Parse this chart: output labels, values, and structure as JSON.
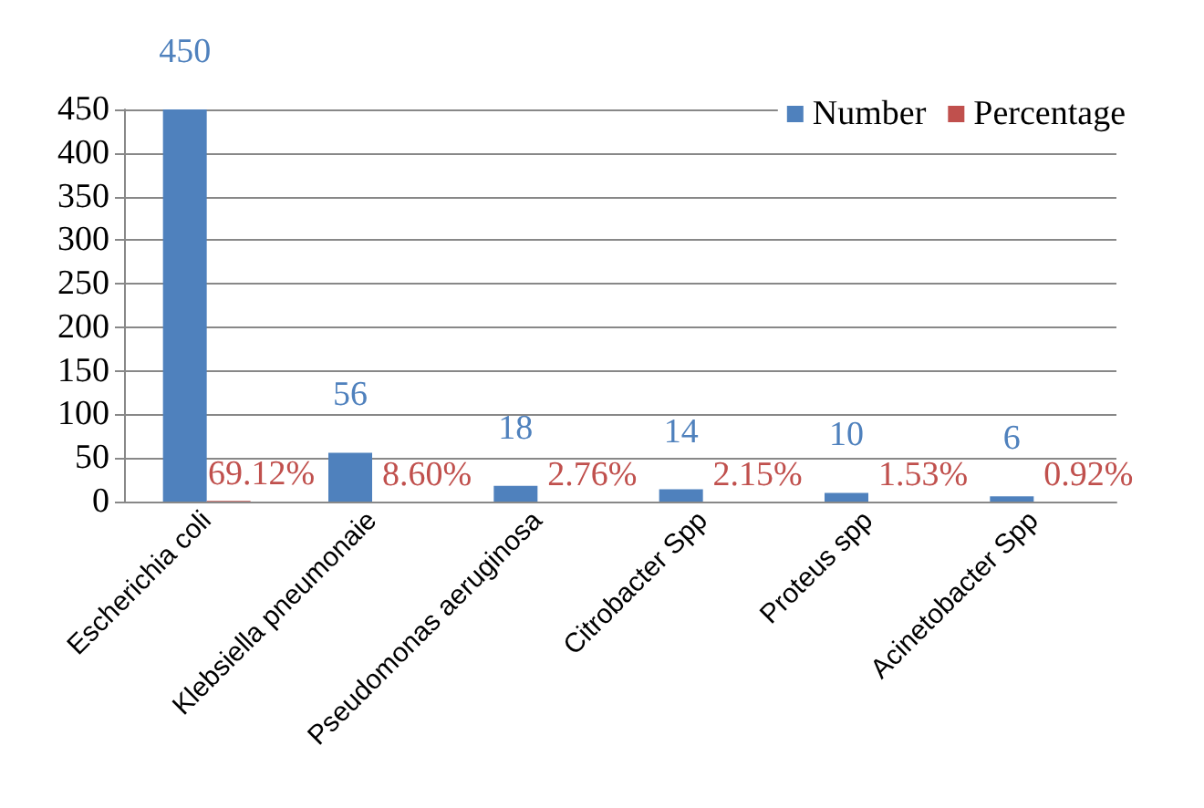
{
  "chart_data": {
    "type": "bar",
    "categories": [
      "Escherichia coli",
      "Klebsiella pneumonaie",
      "Pseudomonas aeruginosa",
      "Citrobacter Spp",
      "Proteus spp",
      "Acinetobacter Spp"
    ],
    "series": [
      {
        "name": "Number",
        "color": "#4f81bd",
        "values": [
          450,
          56,
          18,
          14,
          10,
          6
        ],
        "value_labels": [
          "450",
          "56",
          "18",
          "14",
          "10",
          "6"
        ]
      },
      {
        "name": "Percentage",
        "color": "#c0504d",
        "values": [
          0.6912,
          0.086,
          0.0276,
          0.0215,
          0.0153,
          0.0092
        ],
        "value_labels": [
          "69.12%",
          "8.60%",
          "2.76%",
          "2.15%",
          "1.53%",
          "0.92%"
        ]
      }
    ],
    "ylim": [
      0,
      450
    ],
    "yticks": [
      0,
      50,
      100,
      150,
      200,
      250,
      300,
      350,
      400,
      450
    ],
    "grid": "y",
    "legend": "top right"
  }
}
